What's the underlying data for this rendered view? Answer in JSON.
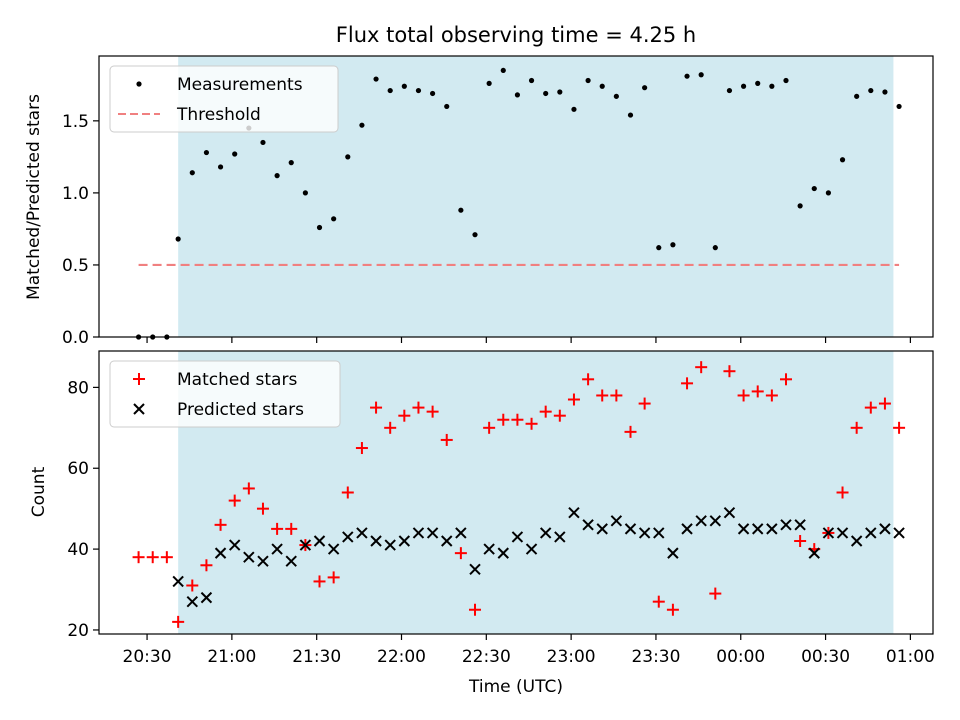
{
  "figure": {
    "title": "Flux total observing time = 4.25 h",
    "xlabel": "Time (UTC)",
    "xticks": [
      "20:30",
      "21:00",
      "21:30",
      "22:00",
      "22:30",
      "23:00",
      "23:30",
      "00:00",
      "00:30",
      "01:00"
    ],
    "shade_color": "#add8e6"
  },
  "chart_data": [
    {
      "type": "scatter",
      "panel": "top",
      "title": "Flux total observing time = 4.25 h",
      "xlabel": "Time (UTC)",
      "ylabel": "Matched/Predicted stars",
      "x_unit": "minutes after 20:30 UTC",
      "xlim": [
        -17,
        278
      ],
      "ylim": [
        0,
        1.95
      ],
      "yticks": [
        "0.0",
        "0.5",
        "1.0",
        "1.5"
      ],
      "yticks_values": [
        0,
        0.5,
        1.0,
        1.5
      ],
      "legend": {
        "location": "upper-left",
        "entries": [
          "Measurements",
          "Threshold"
        ]
      },
      "shaded_span": [
        11,
        264
      ],
      "series": [
        {
          "name": "Measurements",
          "color": "#000000",
          "marker": "dot",
          "x": [
            -3,
            2,
            7,
            11,
            16,
            21,
            26,
            31,
            36,
            41,
            46,
            51,
            56,
            61,
            66,
            71,
            76,
            81,
            86,
            91,
            96,
            101,
            106,
            111,
            116,
            121,
            126,
            131,
            136,
            141,
            146,
            151,
            156,
            161,
            166,
            171,
            176,
            181,
            186,
            191,
            196,
            201,
            206,
            211,
            216,
            221,
            226,
            231,
            236,
            241,
            246,
            251,
            256,
            261,
            266
          ],
          "y": [
            0.0,
            0.0,
            0.0,
            0.68,
            1.14,
            1.28,
            1.18,
            1.27,
            1.45,
            1.35,
            1.12,
            1.21,
            1.0,
            0.76,
            0.82,
            1.25,
            1.47,
            1.79,
            1.71,
            1.74,
            1.71,
            1.69,
            1.6,
            0.88,
            0.71,
            1.76,
            1.85,
            1.68,
            1.78,
            1.69,
            1.7,
            1.58,
            1.78,
            1.74,
            1.67,
            1.54,
            1.73,
            0.62,
            0.64,
            1.81,
            1.82,
            0.62,
            1.71,
            1.74,
            1.76,
            1.74,
            1.78,
            0.91,
            1.03,
            1.0,
            1.23,
            1.67,
            1.71,
            1.7,
            1.6
          ]
        },
        {
          "name": "Threshold",
          "color": "#f08080",
          "style": "dashed",
          "x": [
            -3,
            266
          ],
          "y": [
            0.5,
            0.5
          ]
        }
      ]
    },
    {
      "type": "scatter",
      "panel": "bottom",
      "xlabel": "Time (UTC)",
      "ylabel": "Count",
      "x_unit": "minutes after 20:30 UTC",
      "xlim": [
        -17,
        278
      ],
      "ylim": [
        19,
        89
      ],
      "yticks": [
        "20",
        "40",
        "60",
        "80"
      ],
      "yticks_values": [
        20,
        40,
        60,
        80
      ],
      "legend": {
        "location": "upper-left",
        "entries": [
          "Matched stars",
          "Predicted stars"
        ]
      },
      "shaded_span": [
        11,
        264
      ],
      "series": [
        {
          "name": "Matched stars",
          "color": "#ff0000",
          "marker": "plus",
          "x": [
            -3,
            2,
            7,
            11,
            16,
            21,
            26,
            31,
            36,
            41,
            46,
            51,
            56,
            61,
            66,
            71,
            76,
            81,
            86,
            91,
            96,
            101,
            106,
            111,
            116,
            121,
            126,
            131,
            136,
            141,
            146,
            151,
            156,
            161,
            166,
            171,
            176,
            181,
            186,
            191,
            196,
            201,
            206,
            211,
            216,
            221,
            226,
            231,
            236,
            241,
            246,
            251,
            256,
            261,
            266
          ],
          "y": [
            38,
            38,
            38,
            22,
            31,
            36,
            46,
            52,
            55,
            50,
            45,
            45,
            41,
            32,
            33,
            54,
            65,
            75,
            70,
            73,
            75,
            74,
            67,
            39,
            25,
            70,
            72,
            72,
            71,
            74,
            73,
            77,
            82,
            78,
            78,
            69,
            76,
            27,
            25,
            81,
            85,
            29,
            84,
            78,
            79,
            78,
            82,
            42,
            40,
            44,
            54,
            70,
            75,
            76,
            70
          ]
        },
        {
          "name": "Predicted stars",
          "color": "#000000",
          "marker": "x",
          "x": [
            11,
            16,
            21,
            26,
            31,
            36,
            41,
            46,
            51,
            56,
            61,
            66,
            71,
            76,
            81,
            86,
            91,
            96,
            101,
            106,
            111,
            116,
            121,
            126,
            131,
            136,
            141,
            146,
            151,
            156,
            161,
            166,
            171,
            176,
            181,
            186,
            191,
            196,
            201,
            206,
            211,
            216,
            221,
            226,
            231,
            236,
            241,
            246,
            251,
            256,
            261,
            266
          ],
          "y": [
            32,
            27,
            28,
            39,
            41,
            38,
            37,
            40,
            37,
            41,
            42,
            40,
            43,
            44,
            42,
            41,
            42,
            44,
            44,
            42,
            44,
            35,
            40,
            39,
            43,
            40,
            44,
            43,
            49,
            46,
            45,
            47,
            45,
            44,
            44,
            39,
            45,
            47,
            47,
            49,
            45,
            45,
            45,
            46,
            46,
            39,
            44,
            44,
            42,
            44,
            45,
            44
          ]
        }
      ]
    }
  ]
}
